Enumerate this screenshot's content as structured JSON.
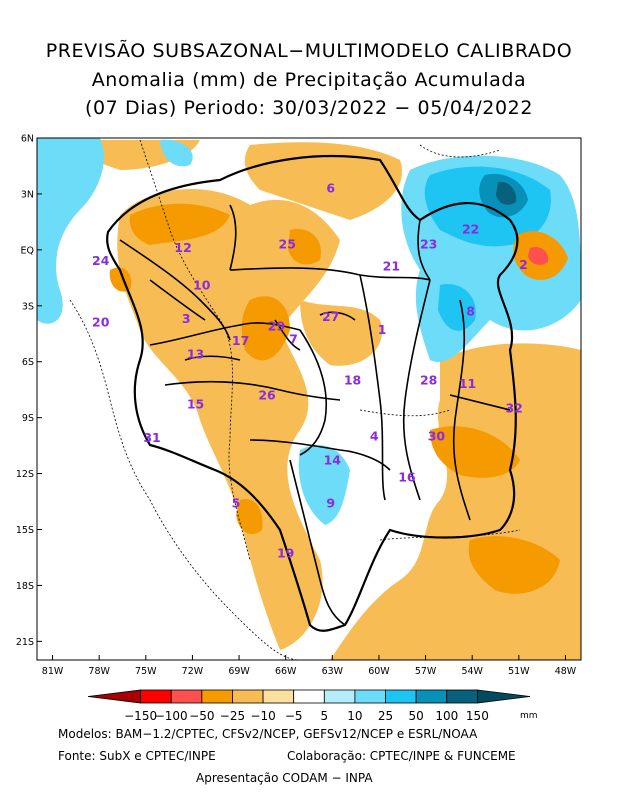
{
  "title": {
    "line1": "PREVISÃO SUBSAZONAL−MULTIMODELO CALIBRADO",
    "line2": "Anomalia (mm) de Precipitação Acumulada",
    "line3": "(07 Dias) Periodo: 30/03/2022 − 05/04/2022"
  },
  "map": {
    "lat_ticks": [
      {
        "label": "6N",
        "value": 6
      },
      {
        "label": "3N",
        "value": 3
      },
      {
        "label": "EQ",
        "value": 0
      },
      {
        "label": "3S",
        "value": -3
      },
      {
        "label": "6S",
        "value": -6
      },
      {
        "label": "9S",
        "value": -9
      },
      {
        "label": "12S",
        "value": -12
      },
      {
        "label": "15S",
        "value": -15
      },
      {
        "label": "18S",
        "value": -18
      },
      {
        "label": "21S",
        "value": -21
      }
    ],
    "lon_ticks": [
      {
        "label": "81W",
        "value": -81
      },
      {
        "label": "78W",
        "value": -78
      },
      {
        "label": "75W",
        "value": -75
      },
      {
        "label": "72W",
        "value": -72
      },
      {
        "label": "69W",
        "value": -69
      },
      {
        "label": "66W",
        "value": -66
      },
      {
        "label": "63W",
        "value": -63
      },
      {
        "label": "60W",
        "value": -60
      },
      {
        "label": "57W",
        "value": -57
      },
      {
        "label": "54W",
        "value": -54
      },
      {
        "label": "51W",
        "value": -51
      },
      {
        "label": "48W",
        "value": -48
      }
    ],
    "lon_range": [
      -82,
      -47
    ],
    "lat_range": [
      -22,
      6
    ],
    "basins": [
      {
        "id": "1",
        "lon": -59.8,
        "lat": -4.3
      },
      {
        "id": "2",
        "lon": -50.7,
        "lat": -0.8
      },
      {
        "id": "3",
        "lon": -72.4,
        "lat": -3.7
      },
      {
        "id": "4",
        "lon": -60.3,
        "lat": -10.0
      },
      {
        "id": "5",
        "lon": -69.2,
        "lat": -13.6
      },
      {
        "id": "6",
        "lon": -63.1,
        "lat": 3.3
      },
      {
        "id": "7",
        "lon": -65.5,
        "lat": -4.8
      },
      {
        "id": "8",
        "lon": -54.1,
        "lat": -3.3
      },
      {
        "id": "9",
        "lon": -63.1,
        "lat": -13.6
      },
      {
        "id": "10",
        "lon": -71.4,
        "lat": -1.9
      },
      {
        "id": "11",
        "lon": -54.3,
        "lat": -7.2
      },
      {
        "id": "12",
        "lon": -72.6,
        "lat": 0.1
      },
      {
        "id": "13",
        "lon": -71.8,
        "lat": -5.6
      },
      {
        "id": "14",
        "lon": -63.0,
        "lat": -11.3
      },
      {
        "id": "15",
        "lon": -71.8,
        "lat": -8.3
      },
      {
        "id": "16",
        "lon": -58.2,
        "lat": -12.2
      },
      {
        "id": "17",
        "lon": -68.9,
        "lat": -4.9
      },
      {
        "id": "18",
        "lon": -61.7,
        "lat": -7.0
      },
      {
        "id": "19",
        "lon": -66.0,
        "lat": -16.3
      },
      {
        "id": "20",
        "lon": -77.9,
        "lat": -3.9
      },
      {
        "id": "21",
        "lon": -59.2,
        "lat": -0.9
      },
      {
        "id": "22",
        "lon": -54.1,
        "lat": 1.1
      },
      {
        "id": "23",
        "lon": -56.8,
        "lat": 0.3
      },
      {
        "id": "24",
        "lon": -77.9,
        "lat": -0.6
      },
      {
        "id": "25",
        "lon": -65.9,
        "lat": 0.3
      },
      {
        "id": "26",
        "lon": -67.2,
        "lat": -7.8
      },
      {
        "id": "27",
        "lon": -63.1,
        "lat": -3.6
      },
      {
        "id": "28",
        "lon": -56.8,
        "lat": -7.0
      },
      {
        "id": "29",
        "lon": -66.6,
        "lat": -4.1
      },
      {
        "id": "30",
        "lon": -56.3,
        "lat": -10.0
      },
      {
        "id": "31",
        "lon": -74.6,
        "lat": -10.1
      },
      {
        "id": "32",
        "lon": -51.3,
        "lat": -8.5
      }
    ]
  },
  "colorbar": {
    "colors": [
      "#a80000",
      "#ff0000",
      "#ff5050",
      "#f59a00",
      "#f8bc55",
      "#fde0a0",
      "#ffffff",
      "#b5ecfc",
      "#6cdcf9",
      "#1ec4f2",
      "#0891b8",
      "#07607c",
      "#034a60"
    ],
    "labels": [
      "−150",
      "−100",
      "−50",
      "−25",
      "−10",
      "−5",
      "5",
      "10",
      "25",
      "50",
      "100",
      "150"
    ],
    "unit": "mm"
  },
  "footer": {
    "models": "Modelos: BAM−1.2/CPTEC, CFSv2/NCEP, GEFSv12/NCEP e ESRL/NOAA",
    "source": "Fonte: SubX e CPTEC/INPE",
    "collab": "Colaboração: CPTEC/INPE & FUNCEME",
    "presentation": "Apresentação CODAM − INPA"
  }
}
